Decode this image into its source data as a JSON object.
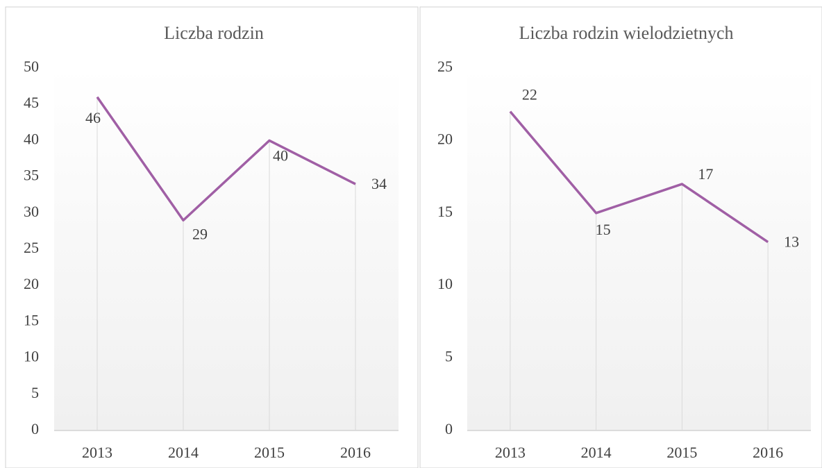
{
  "chart_data": [
    {
      "type": "line",
      "title": "Liczba rodzin",
      "categories": [
        "2013",
        "2014",
        "2015",
        "2016"
      ],
      "values": [
        46,
        29,
        40,
        34
      ],
      "color": "#a05fa5",
      "ylim": [
        0,
        50
      ],
      "yticks": [
        0,
        5,
        10,
        15,
        20,
        25,
        30,
        35,
        40,
        45,
        50
      ],
      "grid": false
    },
    {
      "type": "line",
      "title": "Liczba rodzin wielodzietnych",
      "categories": [
        "2013",
        "2014",
        "2015",
        "2016"
      ],
      "values": [
        22,
        15,
        17,
        13
      ],
      "color": "#a05fa5",
      "ylim": [
        0,
        25
      ],
      "yticks": [
        0,
        5,
        10,
        15,
        20,
        25
      ],
      "grid": false
    }
  ]
}
